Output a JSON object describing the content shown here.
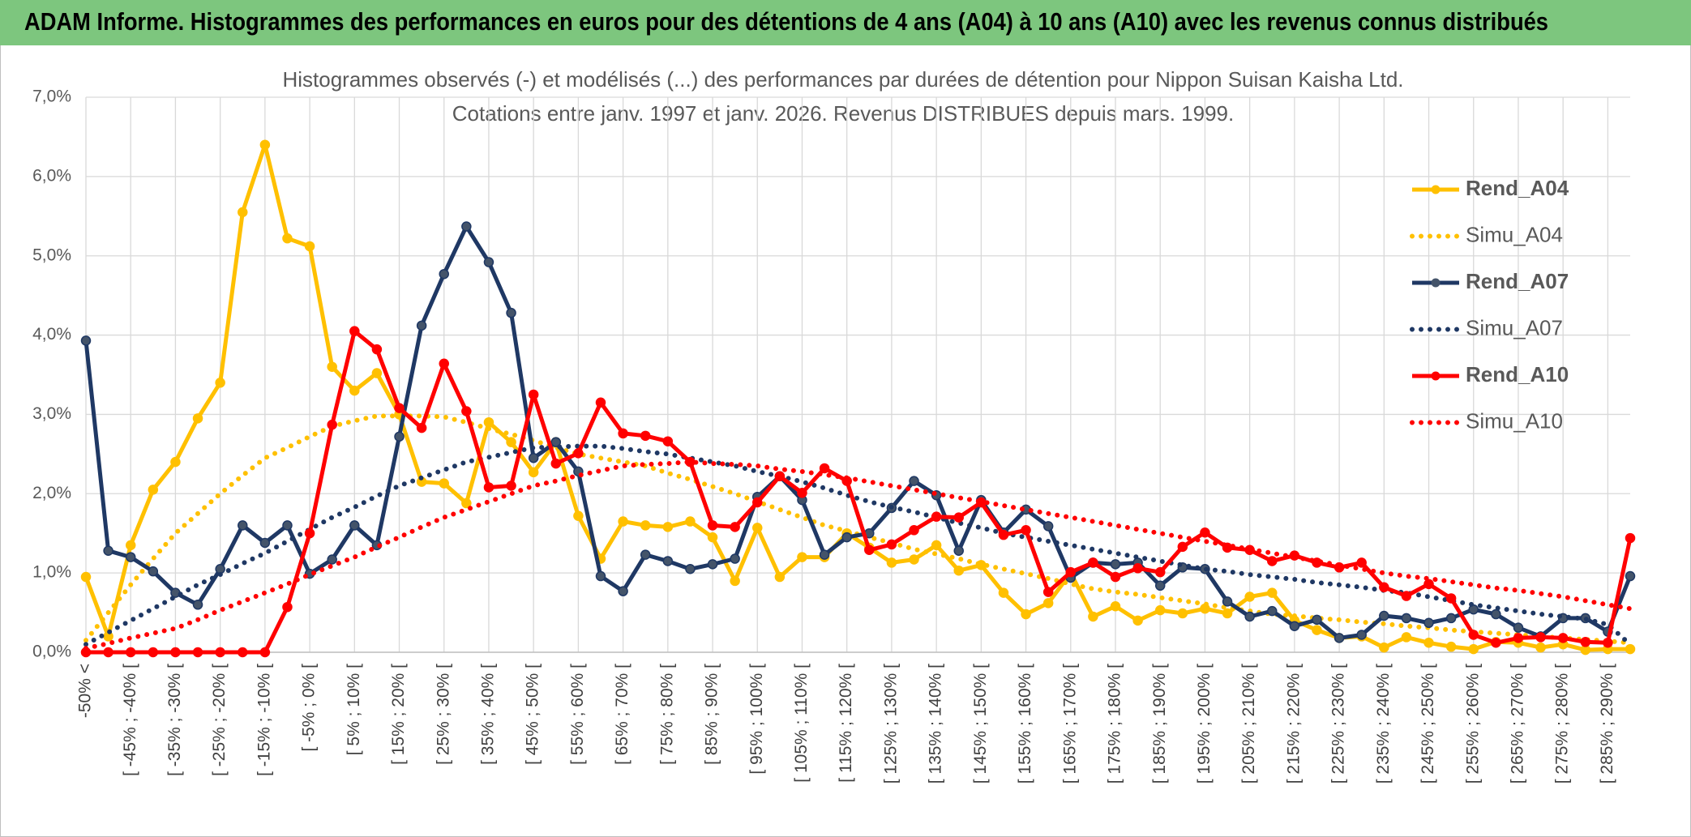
{
  "header": {
    "title": "ADAM Informe. Histogrammes des performances en euros pour des détentions de 4 ans (A04) à 10 ans (A10) avec les revenus connus distribués"
  },
  "chart_data": {
    "type": "line",
    "title": "Histogrammes observés (-) et modélisés (...) des performances par durées de détention pour Nippon Suisan Kaisha Ltd.",
    "subtitle": "Cotations entre janv. 1997 et janv. 2026. Revenus DISTRIBUES depuis mars. 1999.",
    "categories": [
      "-50% <",
      null,
      "[ -45% ; -40% [",
      null,
      "[ -35% ; -30% [",
      null,
      "[ -25% ; -20% [",
      null,
      "[ -15% ; -10% [",
      null,
      "[ -5% ; 0% [",
      null,
      "[ 5% ; 10% [",
      null,
      "[ 15% ; 20% [",
      null,
      "[ 25% ; 30% [",
      null,
      "[ 35% ; 40% [",
      null,
      "[ 45% ; 50% [",
      null,
      "[ 55% ; 60% [",
      null,
      "[ 65% ; 70% [",
      null,
      "[ 75% ; 80% [",
      null,
      "[ 85% ; 90% [",
      null,
      "[ 95% ; 100% [",
      null,
      "[ 105% ; 110% [",
      null,
      "[ 115% ; 120% [",
      null,
      "[ 125% ; 130% [",
      null,
      "[ 135% ; 140% [",
      null,
      "[ 145% ; 150% [",
      null,
      "[ 155% ; 160% [",
      null,
      "[ 165% ; 170% [",
      null,
      "[ 175% ; 180% [",
      null,
      "[ 185% ; 190% [",
      null,
      "[ 195% ; 200% [",
      null,
      "[ 205% ; 210% [",
      null,
      "[ 215% ; 220% [",
      null,
      "[ 225% ; 230% [",
      null,
      "[ 235% ; 240% [",
      null,
      "[ 245% ; 250% [",
      null,
      "[ 255% ; 260% [",
      null,
      "[ 265% ; 270% [",
      null,
      "[ 275% ; 280% [",
      null,
      "[ 285% ; 290% [",
      null
    ],
    "series": [
      {
        "name": "Rend_A04",
        "color": "#ffc000",
        "style": "solid",
        "markers": true,
        "values": [
          0.95,
          0.2,
          1.35,
          2.05,
          2.4,
          2.95,
          3.4,
          5.55,
          6.4,
          5.22,
          5.12,
          3.6,
          3.3,
          3.52,
          3.0,
          2.15,
          2.13,
          1.88,
          2.9,
          2.65,
          2.27,
          2.65,
          1.72,
          1.18,
          1.65,
          1.6,
          1.58,
          1.65,
          1.45,
          0.9,
          1.57,
          0.95,
          1.2,
          1.2,
          1.5,
          1.32,
          1.13,
          1.17,
          1.35,
          1.03,
          1.1,
          0.75,
          0.48,
          0.62,
          1.0,
          0.45,
          0.58,
          0.4,
          0.53,
          0.49,
          0.55,
          0.49,
          0.7,
          0.75,
          0.4,
          0.28,
          0.18,
          0.2,
          0.06,
          0.19,
          0.12,
          0.07,
          0.04,
          0.13,
          0.12,
          0.06,
          0.1,
          0.03,
          0.04,
          0.04
        ]
      },
      {
        "name": "Simu_A04",
        "color": "#ffc000",
        "style": "dotted",
        "markers": false,
        "values": [
          0.15,
          0.5,
          0.85,
          1.18,
          1.5,
          1.75,
          2.0,
          2.23,
          2.45,
          2.58,
          2.72,
          2.85,
          2.92,
          2.98,
          2.98,
          2.98,
          2.97,
          2.9,
          2.82,
          2.75,
          2.67,
          2.58,
          2.5,
          2.45,
          2.4,
          2.35,
          2.26,
          2.18,
          2.09,
          2.0,
          1.9,
          1.8,
          1.7,
          1.6,
          1.53,
          1.45,
          1.38,
          1.3,
          1.24,
          1.18,
          1.11,
          1.05,
          0.99,
          0.93,
          0.86,
          0.8,
          0.76,
          0.73,
          0.69,
          0.65,
          0.61,
          0.56,
          0.52,
          0.48,
          0.46,
          0.43,
          0.41,
          0.38,
          0.36,
          0.33,
          0.31,
          0.28,
          0.26,
          0.24,
          0.22,
          0.2,
          0.18,
          0.16,
          0.14,
          0.12
        ]
      },
      {
        "name": "Rend_A07",
        "color": "#1f3864",
        "style": "solid",
        "markers": true,
        "values": [
          3.93,
          1.28,
          1.2,
          1.02,
          0.75,
          0.6,
          1.05,
          1.6,
          1.38,
          1.6,
          0.99,
          1.17,
          1.6,
          1.35,
          2.72,
          4.12,
          4.77,
          5.37,
          4.92,
          4.28,
          2.45,
          2.65,
          2.28,
          0.96,
          0.77,
          1.23,
          1.15,
          1.05,
          1.11,
          1.18,
          1.96,
          2.22,
          1.92,
          1.23,
          1.45,
          1.5,
          1.82,
          2.16,
          1.98,
          1.28,
          1.92,
          1.51,
          1.8,
          1.59,
          0.94,
          1.13,
          1.11,
          1.13,
          0.84,
          1.07,
          1.05,
          0.64,
          0.45,
          0.52,
          0.33,
          0.41,
          0.18,
          0.22,
          0.46,
          0.43,
          0.37,
          0.43,
          0.54,
          0.48,
          0.31,
          0.2,
          0.43,
          0.43,
          0.26,
          0.96
        ]
      },
      {
        "name": "Simu_A07",
        "color": "#1f3864",
        "style": "dotted",
        "markers": false,
        "values": [
          0.1,
          0.25,
          0.4,
          0.55,
          0.7,
          0.85,
          0.98,
          1.12,
          1.25,
          1.4,
          1.55,
          1.7,
          1.83,
          1.97,
          2.1,
          2.2,
          2.3,
          2.4,
          2.46,
          2.52,
          2.58,
          2.59,
          2.6,
          2.6,
          2.57,
          2.53,
          2.5,
          2.45,
          2.4,
          2.35,
          2.28,
          2.22,
          2.15,
          2.07,
          1.98,
          1.9,
          1.83,
          1.77,
          1.7,
          1.63,
          1.57,
          1.5,
          1.45,
          1.4,
          1.35,
          1.3,
          1.25,
          1.2,
          1.15,
          1.1,
          1.05,
          1.02,
          0.98,
          0.95,
          0.92,
          0.88,
          0.85,
          0.82,
          0.78,
          0.75,
          0.7,
          0.65,
          0.6,
          0.56,
          0.52,
          0.48,
          0.45,
          0.42,
          0.35,
          0.1
        ]
      },
      {
        "name": "Rend_A10",
        "color": "#ff0000",
        "style": "solid",
        "markers": true,
        "values": [
          0,
          0,
          0,
          0,
          0,
          0,
          0,
          0,
          0,
          0.57,
          1.5,
          2.87,
          4.05,
          3.82,
          3.08,
          2.83,
          3.64,
          3.04,
          2.08,
          2.1,
          3.25,
          2.38,
          2.51,
          3.15,
          2.76,
          2.73,
          2.66,
          2.4,
          1.6,
          1.58,
          1.89,
          2.22,
          2.01,
          2.32,
          2.16,
          1.29,
          1.36,
          1.54,
          1.71,
          1.7,
          1.89,
          1.48,
          1.54,
          0.76,
          1.01,
          1.13,
          0.95,
          1.06,
          1.01,
          1.33,
          1.51,
          1.32,
          1.29,
          1.15,
          1.22,
          1.13,
          1.07,
          1.13,
          0.82,
          0.71,
          0.86,
          0.68,
          0.22,
          0.12,
          0.18,
          0.19,
          0.18,
          0.13,
          0.12,
          1.44
        ]
      },
      {
        "name": "Simu_A10",
        "color": "#ff0000",
        "style": "dotted",
        "markers": false,
        "values": [
          0.05,
          0.11,
          0.18,
          0.24,
          0.3,
          0.41,
          0.53,
          0.64,
          0.75,
          0.86,
          0.98,
          1.09,
          1.2,
          1.33,
          1.45,
          1.58,
          1.7,
          1.8,
          1.9,
          2.0,
          2.1,
          2.16,
          2.23,
          2.29,
          2.35,
          2.37,
          2.38,
          2.4,
          2.38,
          2.37,
          2.35,
          2.31,
          2.28,
          2.24,
          2.2,
          2.15,
          2.1,
          2.05,
          2.0,
          1.95,
          1.9,
          1.85,
          1.8,
          1.75,
          1.7,
          1.65,
          1.6,
          1.55,
          1.5,
          1.45,
          1.4,
          1.35,
          1.3,
          1.25,
          1.2,
          1.15,
          1.1,
          1.05,
          1.0,
          0.96,
          0.93,
          0.89,
          0.85,
          0.81,
          0.78,
          0.74,
          0.7,
          0.65,
          0.6,
          0.55
        ]
      }
    ],
    "ylim": [
      0,
      7
    ],
    "yticks": [
      {
        "value": 0,
        "label": "0,0%"
      },
      {
        "value": 1,
        "label": "1,0%"
      },
      {
        "value": 2,
        "label": "2,0%"
      },
      {
        "value": 3,
        "label": "3,0%"
      },
      {
        "value": 4,
        "label": "4,0%"
      },
      {
        "value": 5,
        "label": "5,0%"
      },
      {
        "value": 6,
        "label": "6,0%"
      },
      {
        "value": 7,
        "label": "7,0%"
      }
    ],
    "grid": true,
    "legend": "right"
  }
}
